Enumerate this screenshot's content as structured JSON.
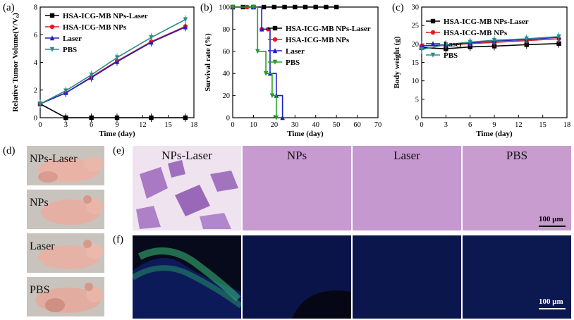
{
  "panel_labels": {
    "a": "(a)",
    "b": "(b)",
    "c": "(c)",
    "d": "(d)",
    "e": "(e)",
    "f": "(f)"
  },
  "chart_data": [
    {
      "type": "line",
      "xlabel": "Time (day)",
      "ylabel": "Relative Tumor Volume(V/V₀)",
      "xlim": [
        0,
        18
      ],
      "ylim": [
        0,
        8
      ],
      "xticks": [
        0,
        3,
        6,
        9,
        12,
        15,
        18
      ],
      "yticks": [
        0,
        2,
        4,
        6,
        8
      ],
      "legend_position": "top-left",
      "x": [
        0,
        3,
        6,
        9,
        13,
        17
      ],
      "series": [
        {
          "name": "HSA-ICG-MB NPs-Laser",
          "color": "#000000",
          "marker": "square",
          "values": [
            1,
            0,
            0,
            0,
            0,
            0
          ]
        },
        {
          "name": "HSA-ICG-MB NPs",
          "color": "#e41a1c",
          "marker": "circle",
          "values": [
            1,
            1.8,
            2.95,
            4.1,
            5.5,
            6.6
          ]
        },
        {
          "name": "Laser",
          "color": "#1f1fbf",
          "marker": "triangle",
          "values": [
            1,
            1.8,
            2.9,
            4.05,
            5.45,
            6.55
          ]
        },
        {
          "name": "PBS",
          "color": "#2a8c8c",
          "marker": "triangle-down",
          "values": [
            1,
            1.95,
            3.1,
            4.35,
            5.8,
            7.1
          ]
        }
      ]
    },
    {
      "type": "line",
      "xlabel": "Time (day)",
      "ylabel": "Survival rate (%)",
      "xlim": [
        0,
        70
      ],
      "ylim": [
        0,
        100
      ],
      "xticks": [
        0,
        10,
        20,
        30,
        40,
        50,
        60,
        70
      ],
      "yticks": [
        0,
        20,
        40,
        60,
        80,
        100
      ],
      "legend_position": "top-right",
      "step": true,
      "series": [
        {
          "name": "HSA-ICG-MB NPs-Laser",
          "color": "#000000",
          "marker": "square",
          "x": [
            0,
            5,
            10,
            15,
            20,
            25,
            30,
            35,
            40,
            45,
            50
          ],
          "values": [
            100,
            100,
            100,
            100,
            100,
            100,
            100,
            100,
            100,
            100,
            100
          ]
        },
        {
          "name": "HSA-ICG-MB NPs",
          "color": "#e41a1c",
          "marker": "circle",
          "x": [
            0,
            7,
            14,
            17
          ],
          "values": [
            100,
            100,
            80,
            80
          ]
        },
        {
          "name": "Laser",
          "color": "#1f1fbf",
          "marker": "triangle",
          "x": [
            0,
            10,
            14,
            18,
            21,
            24
          ],
          "values": [
            100,
            100,
            80,
            40,
            20,
            0
          ]
        },
        {
          "name": "PBS",
          "color": "#22a022",
          "marker": "triangle-down",
          "x": [
            0,
            10,
            12,
            16,
            19,
            21
          ],
          "values": [
            100,
            100,
            60,
            40,
            20,
            0
          ]
        }
      ]
    },
    {
      "type": "line",
      "xlabel": "Time (day)",
      "ylabel": "Body weight (g)",
      "xlim": [
        0,
        18
      ],
      "ylim": [
        0,
        30
      ],
      "xticks": [
        0,
        3,
        6,
        9,
        12,
        15,
        18
      ],
      "yticks": [
        0,
        5,
        10,
        15,
        20,
        25,
        30
      ],
      "legend_position": "top-left",
      "x": [
        0,
        3,
        6,
        9,
        13,
        17
      ],
      "series": [
        {
          "name": "HSA-ICG-MB NPs-Laser",
          "color": "#000000",
          "marker": "square",
          "values": [
            19,
            18.7,
            19.2,
            19.4,
            19.8,
            20.1
          ]
        },
        {
          "name": "HSA-ICG-MB NPs",
          "color": "#e41a1c",
          "marker": "circle",
          "values": [
            19.5,
            19.6,
            20.1,
            20.4,
            20.9,
            21.4
          ]
        },
        {
          "name": "Laser",
          "color": "#1f1fbf",
          "marker": "triangle",
          "values": [
            19.4,
            19.8,
            20.3,
            20.8,
            21.2,
            21.8
          ]
        },
        {
          "name": "PBS",
          "color": "#2a8c8c",
          "marker": "triangle-down",
          "values": [
            18.5,
            19.8,
            20.5,
            21.0,
            21.4,
            22.0
          ]
        }
      ]
    }
  ],
  "mice": [
    "NPs-Laser",
    "NPs",
    "Laser",
    "PBS"
  ],
  "he_titles": [
    "NPs-Laser",
    "NPs",
    "Laser",
    "PBS"
  ],
  "he_scale": "100 μm",
  "fl_scale": "100 μm"
}
